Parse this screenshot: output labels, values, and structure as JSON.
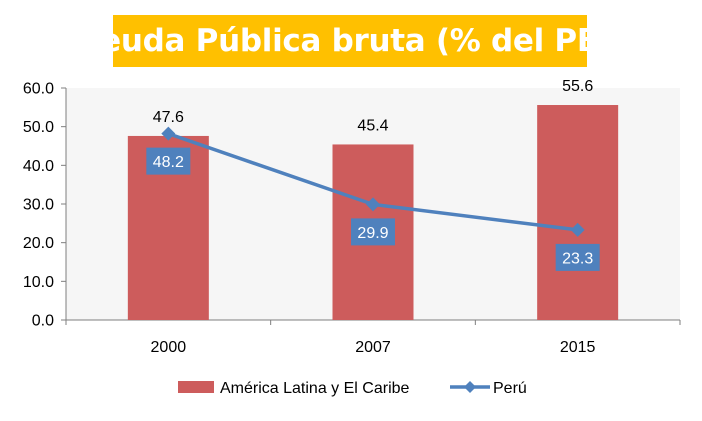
{
  "chart_data": {
    "type": "bar",
    "title": "Deuda Pública bruta (% del PBI)",
    "categories": [
      "2000",
      "2007",
      "2015"
    ],
    "ylim": [
      0,
      60
    ],
    "yticks": [
      "0.0",
      "10.0",
      "20.0",
      "30.0",
      "40.0",
      "50.0",
      "60.0"
    ],
    "xlabel": "",
    "ylabel": "",
    "grid": false,
    "legend_position": "bottom",
    "series": [
      {
        "name": "América Latina y El Caribe",
        "type": "bar",
        "color": "#CD5C5C",
        "values": [
          47.6,
          45.4,
          55.6
        ],
        "labels": [
          "47.6",
          "45.4",
          "55.6"
        ]
      },
      {
        "name": "Perú",
        "type": "line",
        "color": "#4F81BD",
        "marker": "diamond",
        "values": [
          48.2,
          29.9,
          23.3
        ],
        "labels": [
          "48.2",
          "29.9",
          "23.3"
        ]
      }
    ]
  }
}
